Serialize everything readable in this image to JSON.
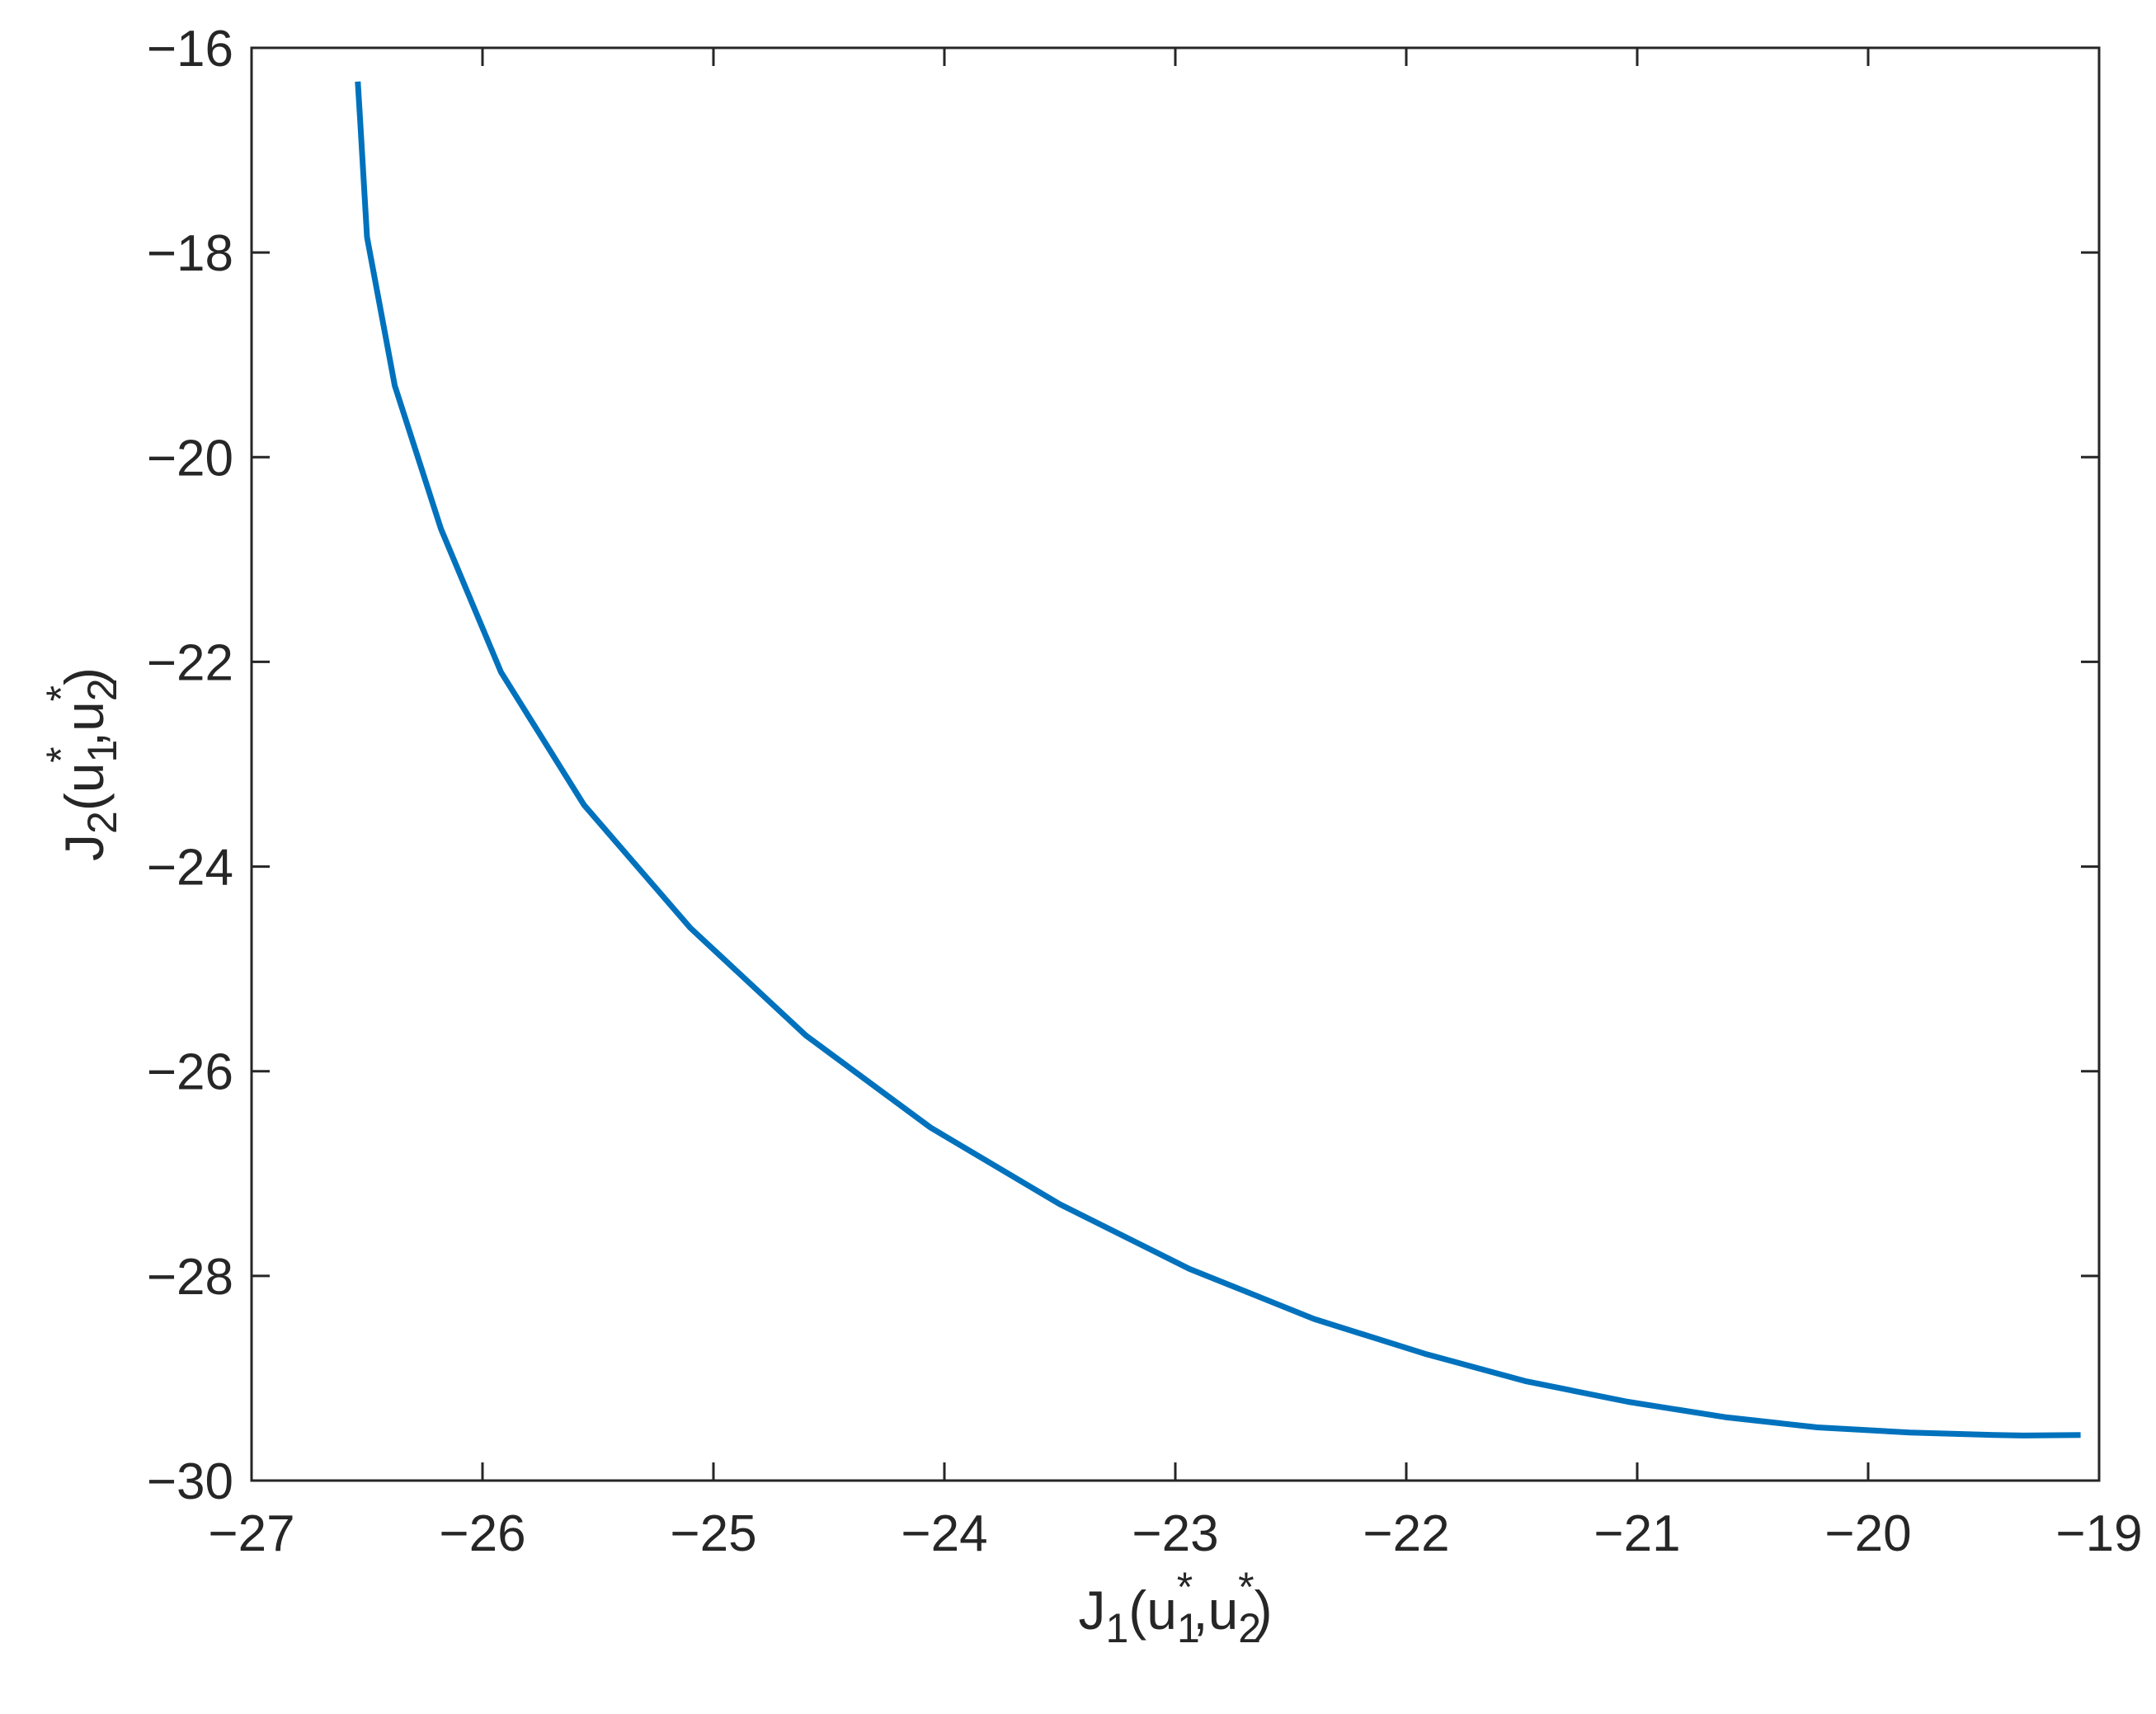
{
  "chart_data": {
    "type": "line",
    "title": "",
    "xlabel": {
      "parts": [
        {
          "text": "J",
          "kind": "base"
        },
        {
          "text": "1",
          "kind": "sub"
        },
        {
          "text": "(u",
          "kind": "base"
        },
        {
          "text": "1",
          "kind": "sub"
        },
        {
          "text": "*",
          "kind": "sup"
        },
        {
          "text": ",u",
          "kind": "base"
        },
        {
          "text": "2",
          "kind": "sub"
        },
        {
          "text": "*",
          "kind": "sup"
        },
        {
          "text": ")",
          "kind": "base"
        }
      ]
    },
    "ylabel": {
      "parts": [
        {
          "text": "J",
          "kind": "base"
        },
        {
          "text": "2",
          "kind": "sub"
        },
        {
          "text": "(u",
          "kind": "base"
        },
        {
          "text": "1",
          "kind": "sub"
        },
        {
          "text": "*",
          "kind": "sup"
        },
        {
          "text": ",u",
          "kind": "base"
        },
        {
          "text": "2",
          "kind": "sub"
        },
        {
          "text": "*",
          "kind": "sup"
        },
        {
          "text": ")",
          "kind": "base"
        }
      ]
    },
    "xlim": [
      -27,
      -19
    ],
    "ylim": [
      -30,
      -16
    ],
    "xticks": [
      -27,
      -26,
      -25,
      -24,
      -23,
      -22,
      -21,
      -20,
      -19
    ],
    "yticks": [
      -30,
      -28,
      -26,
      -24,
      -22,
      -20,
      -18,
      -16
    ],
    "xtick_labels": [
      "−27",
      "−26",
      "−25",
      "−24",
      "−23",
      "−22",
      "−21",
      "−20",
      "−19"
    ],
    "ytick_labels": [
      "−30",
      "−28",
      "−26",
      "−24",
      "−22",
      "−20",
      "−18",
      "−16"
    ],
    "grid": false,
    "series": [
      {
        "color": "#0072BD",
        "x": [
          -26.54,
          -26.53,
          -26.5,
          -26.38,
          -26.18,
          -25.92,
          -25.56,
          -25.1,
          -24.6,
          -24.06,
          -23.5,
          -22.94,
          -22.4,
          -21.92,
          -21.48,
          -21.04,
          -20.62,
          -20.22,
          -19.82,
          -19.45,
          -19.33,
          -19.08
        ],
        "y": [
          -16.33,
          -16.7,
          -17.85,
          -19.3,
          -20.7,
          -22.1,
          -23.4,
          -24.6,
          -25.65,
          -26.55,
          -27.3,
          -27.93,
          -28.42,
          -28.76,
          -29.03,
          -29.23,
          -29.38,
          -29.48,
          -29.53,
          -29.555,
          -29.56,
          -29.555
        ]
      }
    ]
  }
}
